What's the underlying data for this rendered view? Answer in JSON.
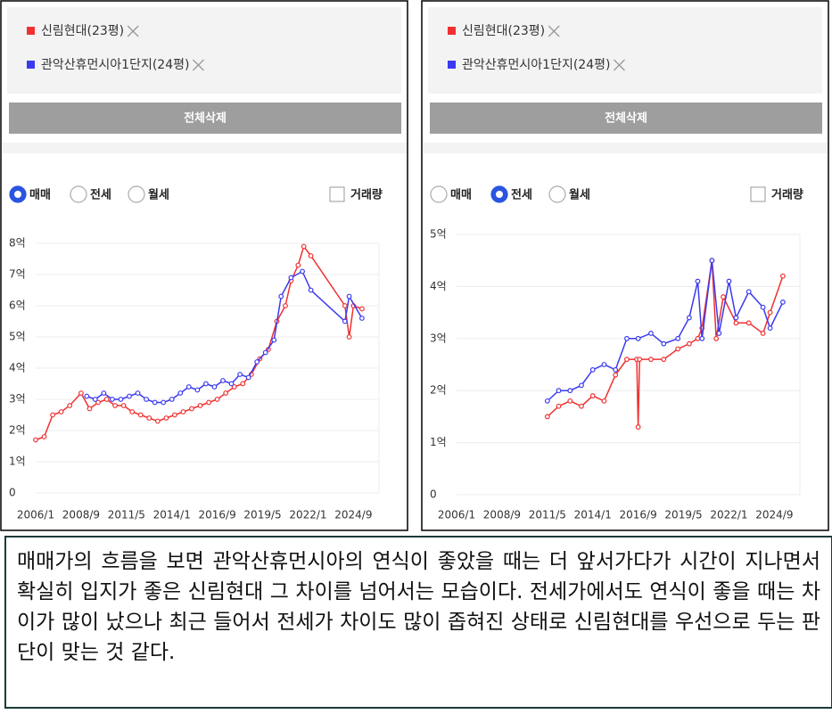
{
  "panels": [
    {
      "button": "전체삭제",
      "options": [
        "매매",
        "전세",
        "월세"
      ],
      "selected": 0,
      "checkbox": "거래량"
    },
    {
      "button": "전체삭제",
      "options": [
        "매매",
        "전세",
        "월세"
      ],
      "selected": 1,
      "checkbox": "거래량"
    }
  ],
  "chart_data": [
    {
      "type": "line",
      "xlim": [
        "2006/1",
        "2026/3"
      ],
      "xticks": [
        "2006/1",
        "2008/9",
        "2011/5",
        "2014/1",
        "2016/9",
        "2019/5",
        "2022/1",
        "2024/9"
      ],
      "ylim": [
        0,
        8
      ],
      "yticks": [
        0,
        {
          "value": 1,
          "label": "1억"
        },
        {
          "value": 2,
          "label": "2억"
        },
        {
          "value": 3,
          "label": "3억"
        },
        {
          "value": 4,
          "label": "4억"
        },
        {
          "value": 5,
          "label": "5억"
        },
        {
          "value": 6,
          "label": "6억"
        },
        {
          "value": 7,
          "label": "7억"
        },
        {
          "value": 8,
          "label": "8억"
        }
      ],
      "grid": true,
      "series": [
        {
          "name": "신림현대(23평)",
          "color": "#f03030",
          "x": [
            "2006/1",
            "2006/7",
            "2007/1",
            "2007/7",
            "2008/1",
            "2008/9",
            "2009/3",
            "2009/9",
            "2010/3",
            "2010/9",
            "2011/3",
            "2011/9",
            "2012/3",
            "2012/9",
            "2013/3",
            "2013/9",
            "2014/3",
            "2014/9",
            "2015/3",
            "2015/9",
            "2016/3",
            "2016/9",
            "2017/3",
            "2017/9",
            "2018/3",
            "2018/9",
            "2019/3",
            "2019/9",
            "2020/3",
            "2020/9",
            "2021/1",
            "2021/6",
            "2021/10",
            "2022/3",
            "2024/3",
            "2024/6",
            "2024/9",
            "2025/3"
          ],
          "values": [
            1.7,
            1.8,
            2.5,
            2.6,
            2.8,
            3.2,
            2.7,
            2.9,
            3.0,
            2.8,
            2.8,
            2.6,
            2.5,
            2.4,
            2.3,
            2.4,
            2.5,
            2.6,
            2.7,
            2.8,
            2.9,
            3.0,
            3.2,
            3.4,
            3.5,
            3.8,
            4.3,
            4.6,
            5.5,
            6.0,
            6.8,
            7.3,
            7.9,
            7.6,
            6.0,
            5.0,
            6.0,
            5.9
          ]
        },
        {
          "name": "관악산휴먼시아1단지(24평)",
          "color": "#3a3af0",
          "x": [
            "2009/1",
            "2009/7",
            "2010/1",
            "2010/7",
            "2011/1",
            "2011/7",
            "2012/1",
            "2012/7",
            "2013/1",
            "2013/7",
            "2014/1",
            "2014/7",
            "2015/1",
            "2015/7",
            "2016/1",
            "2016/7",
            "2017/1",
            "2017/7",
            "2018/1",
            "2018/7",
            "2019/1",
            "2019/7",
            "2020/1",
            "2020/6",
            "2021/1",
            "2021/9",
            "2022/3",
            "2024/3",
            "2024/6",
            "2025/3"
          ],
          "values": [
            3.1,
            3.0,
            3.2,
            3.0,
            3.0,
            3.1,
            3.2,
            3.0,
            2.9,
            2.9,
            3.0,
            3.2,
            3.4,
            3.3,
            3.5,
            3.4,
            3.6,
            3.5,
            3.8,
            3.7,
            4.2,
            4.5,
            4.9,
            6.3,
            6.9,
            7.1,
            6.5,
            5.5,
            6.3,
            5.6
          ]
        }
      ]
    },
    {
      "type": "line",
      "xlim": [
        "2006/1",
        "2026/3"
      ],
      "xticks": [
        "2006/1",
        "2008/9",
        "2011/5",
        "2014/1",
        "2016/9",
        "2019/5",
        "2022/1",
        "2024/9"
      ],
      "ylim": [
        0,
        5
      ],
      "yticks": [
        0,
        {
          "value": 1,
          "label": "1억"
        },
        {
          "value": 2,
          "label": "2억"
        },
        {
          "value": 3,
          "label": "3억"
        },
        {
          "value": 4,
          "label": "4억"
        },
        {
          "value": 5,
          "label": "5억"
        }
      ],
      "grid": true,
      "series": [
        {
          "name": "신림현대(23평)",
          "color": "#f03030",
          "x": [
            "2011/5",
            "2012/1",
            "2012/9",
            "2013/5",
            "2014/1",
            "2014/9",
            "2015/5",
            "2016/1",
            "2016/8",
            "2016/9",
            "2016/10",
            "2017/6",
            "2018/3",
            "2019/1",
            "2019/9",
            "2020/3",
            "2020/6",
            "2021/1",
            "2021/4",
            "2021/9",
            "2022/6",
            "2023/3",
            "2024/1",
            "2024/6",
            "2025/3"
          ],
          "values": [
            1.5,
            1.7,
            1.8,
            1.7,
            1.9,
            1.8,
            2.3,
            2.6,
            2.6,
            1.3,
            2.6,
            2.6,
            2.6,
            2.8,
            2.9,
            3.0,
            3.2,
            4.5,
            3.0,
            3.8,
            3.3,
            3.3,
            3.1,
            3.5,
            4.2
          ]
        },
        {
          "name": "관악산휴먼시아1단지(24평)",
          "color": "#3a3af0",
          "x": [
            "2011/5",
            "2012/1",
            "2012/9",
            "2013/5",
            "2014/1",
            "2014/9",
            "2015/5",
            "2016/1",
            "2016/9",
            "2017/6",
            "2018/3",
            "2019/1",
            "2019/9",
            "2020/3",
            "2020/6",
            "2021/1",
            "2021/6",
            "2022/1",
            "2022/6",
            "2023/3",
            "2024/1",
            "2024/6",
            "2025/3"
          ],
          "values": [
            1.8,
            2.0,
            2.0,
            2.1,
            2.4,
            2.5,
            2.4,
            3.0,
            3.0,
            3.1,
            2.9,
            3.0,
            3.4,
            4.1,
            3.0,
            4.5,
            3.1,
            4.1,
            3.4,
            3.9,
            3.6,
            3.2,
            3.7
          ]
        }
      ]
    }
  ],
  "caption": "매매가의 흐름을 보면 관악산휴먼시아의 연식이 좋았을 때는 더 앞서가다가 시간이 지나면서 확실히 입지가 좋은 신림현대 그 차이를 넘어서는 모습이다. 전세가에서도 연식이 좋을 때는 차이가 많이 났으나 최근 들어서 전세가 차이도 많이 좁혀진 상태로 신림현대를 우선으로 두는 판단이 맞는 것 같다."
}
